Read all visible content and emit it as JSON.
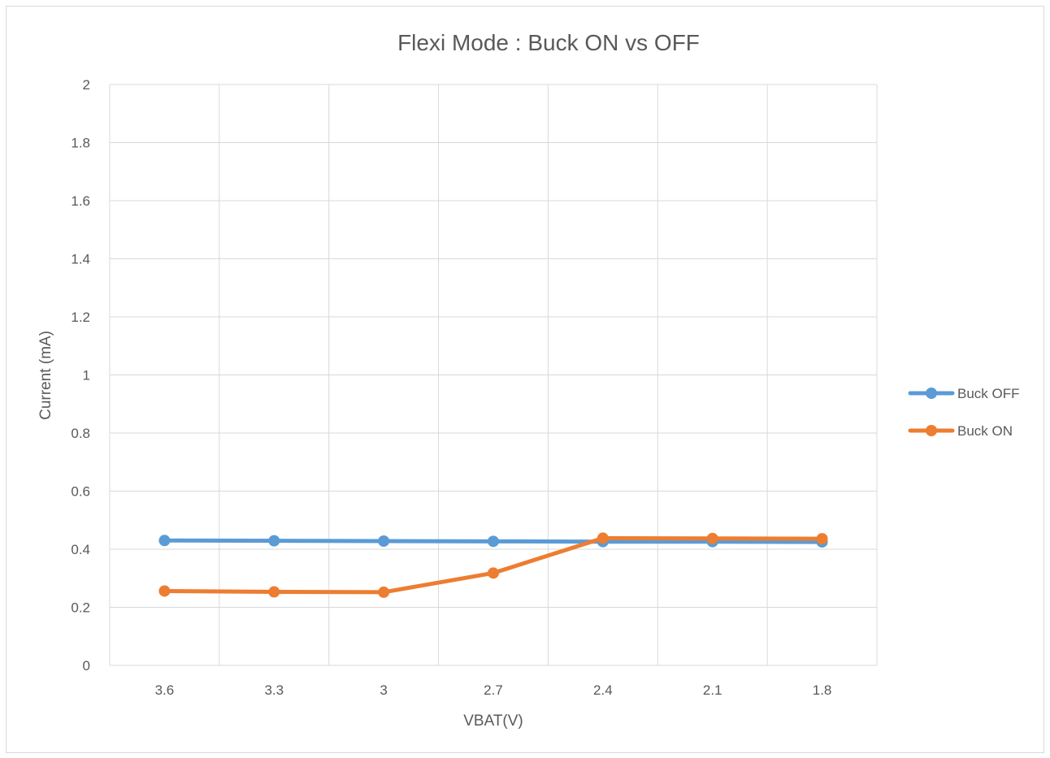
{
  "chart_data": {
    "type": "line",
    "title": "Flexi Mode : Buck ON vs OFF",
    "xlabel": "VBAT(V)",
    "ylabel": "Current (mA)",
    "categories": [
      "3.6",
      "3.3",
      "3",
      "2.7",
      "2.4",
      "2.1",
      "1.8"
    ],
    "ylim": [
      0,
      2
    ],
    "yticks": [
      "0",
      "0.2",
      "0.4",
      "0.6",
      "0.8",
      "1",
      "1.2",
      "1.4",
      "1.6",
      "1.8",
      "2"
    ],
    "grid": true,
    "legend_position": "right",
    "series": [
      {
        "name": "Buck OFF",
        "color": "#5b9bd5",
        "values": [
          0.43,
          0.429,
          0.428,
          0.427,
          0.426,
          0.426,
          0.425
        ]
      },
      {
        "name": "Buck ON",
        "color": "#ed7d31",
        "values": [
          0.256,
          0.253,
          0.252,
          0.318,
          0.438,
          0.437,
          0.436
        ]
      }
    ]
  }
}
